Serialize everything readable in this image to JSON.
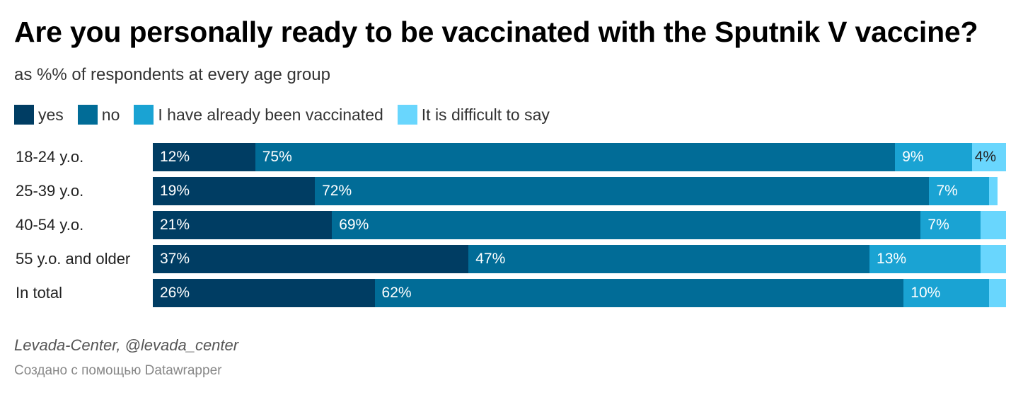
{
  "chart_data": {
    "type": "bar",
    "orientation": "horizontal",
    "stacked": true,
    "title": "Are you personally ready to be vaccinated with the Sputnik V vaccine?",
    "subtitle": "as %% of respondents at every age group",
    "categories": [
      "18-24 y.o.",
      "25-39 y.o.",
      "40-54 y.o.",
      "55 y.o. and older",
      "In total"
    ],
    "series": [
      {
        "name": "yes",
        "color": "#003d63",
        "values": [
          12,
          19,
          21,
          37,
          26
        ],
        "labels": [
          "12%",
          "19%",
          "21%",
          "37%",
          "26%"
        ]
      },
      {
        "name": "no",
        "color": "#016c97",
        "values": [
          75,
          72,
          69,
          47,
          62
        ],
        "labels": [
          "75%",
          "72%",
          "69%",
          "47%",
          "62%"
        ]
      },
      {
        "name": "I have already been vaccinated",
        "color": "#1aa3d3",
        "values": [
          9,
          7,
          7,
          13,
          10
        ],
        "labels": [
          "9%",
          "7%",
          "7%",
          "13%",
          "10%"
        ]
      },
      {
        "name": "It is difficult to say",
        "color": "#69d6fd",
        "values": [
          4,
          1,
          3,
          3,
          2
        ],
        "labels": [
          "4%",
          "",
          "",
          "",
          ""
        ]
      }
    ],
    "xlim": [
      0,
      100
    ],
    "legend": "top"
  },
  "source": "Levada-Center, @levada_center",
  "credit": "Создано с помощью Datawrapper"
}
